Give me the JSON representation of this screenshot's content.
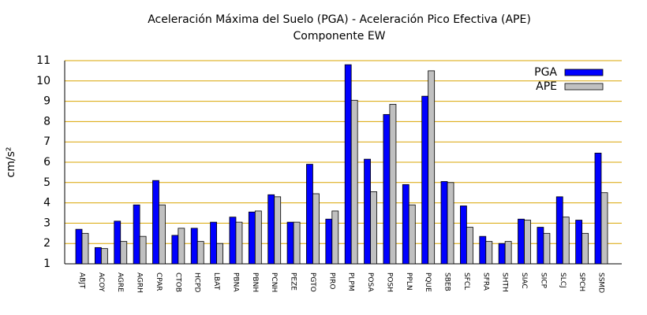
{
  "chart_data": {
    "type": "bar",
    "title": "Aceleración Máxima del Suelo (PGA) -  Aceleración Pico Efectiva (APE)",
    "subtitle": "Componente EW",
    "y_label": "cm/s²",
    "categories": [
      "ABJT",
      "ACOY",
      "AGRE",
      "AGRH",
      "CPAR",
      "CTOB",
      "HCPD",
      "LBAT",
      "PBNA",
      "PBNH",
      "PCNH",
      "PEZE",
      "PGTO",
      "PIRO",
      "PLPM",
      "POSA",
      "POSH",
      "PPLN",
      "PQUE",
      "SBEB",
      "SFCL",
      "SFRA",
      "SHTH",
      "SIAC",
      "SICP",
      "SLCJ",
      "SPCH",
      "SSMD"
    ],
    "series": [
      {
        "name": "PGA",
        "color": "#0000ff",
        "values": [
          2.7,
          1.8,
          3.1,
          3.9,
          5.1,
          2.4,
          2.75,
          3.05,
          3.3,
          3.55,
          4.4,
          3.05,
          5.9,
          3.2,
          10.8,
          6.15,
          8.35,
          4.9,
          9.25,
          5.05,
          3.85,
          2.35,
          2.0,
          3.2,
          2.8,
          4.3,
          3.15,
          6.45
        ]
      },
      {
        "name": "APE",
        "color": "#c0c0c0",
        "values": [
          2.5,
          1.75,
          2.1,
          2.35,
          3.9,
          2.75,
          2.1,
          2.0,
          3.05,
          3.6,
          4.3,
          3.05,
          4.45,
          3.6,
          9.05,
          4.55,
          8.85,
          3.9,
          10.5,
          5.0,
          2.8,
          2.1,
          2.1,
          3.15,
          2.5,
          3.3,
          2.5,
          4.5
        ]
      }
    ],
    "ylim": [
      1,
      11
    ],
    "yticks": [
      1,
      2,
      3,
      4,
      5,
      6,
      7,
      8,
      9,
      10,
      11
    ],
    "grid": true,
    "legend": "top-right"
  }
}
